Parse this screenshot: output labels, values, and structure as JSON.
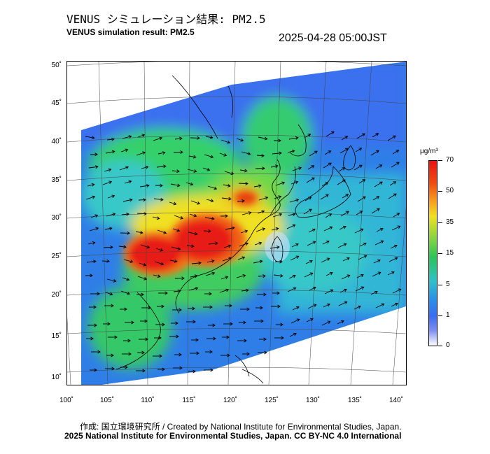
{
  "header": {
    "title_jp": "VENUS シミュレーション結果: PM2.5",
    "title_en": "VENUS simulation result: PM2.5",
    "timestamp": "2025-04-28 05:00JST"
  },
  "map": {
    "lat_labels": [
      "50˚",
      "45˚",
      "40˚",
      "35˚",
      "30˚",
      "25˚",
      "20˚",
      "15˚",
      "10˚"
    ],
    "lon_labels": [
      "100˚",
      "105˚",
      "110˚",
      "115˚",
      "120˚",
      "125˚",
      "130˚",
      "135˚",
      "140˚"
    ],
    "layers": [
      "pm2.5-concentration-field",
      "wind-vectors",
      "coastlines",
      "graticule"
    ]
  },
  "colorbar": {
    "unit": "μg/m³",
    "ticks": [
      "70",
      "50",
      "35",
      "15",
      "5",
      "1",
      "0"
    ],
    "colors": [
      "#e81414",
      "#f7a020",
      "#f0e020",
      "#2cc458",
      "#30c0c8",
      "#2a90e8",
      "#3a6cf0",
      "#ffffff"
    ]
  },
  "footer": {
    "credit_line1": "作成: 国立環境研究所 / Created by National Institute for Environmental Studies, Japan.",
    "credit_line2": "2025 National Institute for Environmental Studies, Japan. CC BY-NC 4.0 International"
  }
}
